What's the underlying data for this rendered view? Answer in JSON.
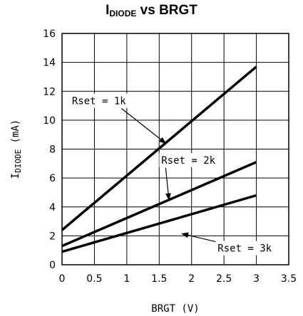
{
  "chart_data": {
    "type": "line",
    "title": {
      "main": "I",
      "sub": "DIODE",
      "rest": " vs BRGT"
    },
    "xlabel": "BRGT (V)",
    "ylabel": {
      "main": "I",
      "sub": "DIODE",
      "rest": " (mA)"
    },
    "xlim": [
      0,
      3.5
    ],
    "ylim": [
      0,
      16
    ],
    "xticks": [
      0,
      0.5,
      1,
      1.5,
      2,
      2.5,
      3,
      3.5
    ],
    "xtick_labels": [
      "0",
      "0.5",
      "1",
      "1.5",
      "2",
      "2.5",
      "3",
      "3.5"
    ],
    "yticks": [
      0,
      2,
      4,
      6,
      8,
      10,
      12,
      14,
      16
    ],
    "ytick_labels": [
      "0",
      "2",
      "4",
      "6",
      "8",
      "10",
      "12",
      "14",
      "16"
    ],
    "grid": true,
    "series": [
      {
        "x": [
          0,
          3
        ],
        "y": [
          2.4,
          13.7
        ]
      },
      {
        "x": [
          0,
          3
        ],
        "y": [
          1.3,
          7.1
        ]
      },
      {
        "x": [
          0,
          3
        ],
        "y": [
          0.9,
          4.8
        ]
      }
    ],
    "annotations": [
      {
        "text": "Rset = 1k",
        "series": 0,
        "label_x": 0.57,
        "label_y": 11.1,
        "arrow_to_x": 1.6,
        "arrow_to_y": 8.4
      },
      {
        "text": "Rset = 2k",
        "series": 1,
        "label_x": 1.95,
        "label_y": 7.0,
        "arrow_to_x": 1.65,
        "arrow_to_y": 4.5
      },
      {
        "text": "Rset = 3k",
        "series": 2,
        "label_x": 2.82,
        "label_y": 0.9,
        "arrow_to_x": 1.85,
        "arrow_to_y": 2.15
      }
    ]
  }
}
